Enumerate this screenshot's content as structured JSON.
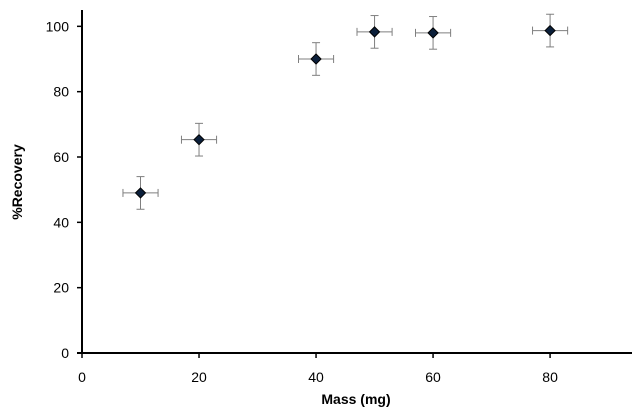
{
  "chart_data": {
    "type": "scatter",
    "title": "",
    "xlabel": "Mass (mg)",
    "ylabel": "%Recovery",
    "xlim": [
      0,
      94
    ],
    "ylim": [
      0,
      105
    ],
    "x_ticks": [
      "0",
      "20",
      "40",
      "60",
      "80"
    ],
    "y_ticks": [
      "0",
      "20",
      "40",
      "60",
      "80",
      "100"
    ],
    "grid": false,
    "legend": "none",
    "marker": {
      "shape": "diamond",
      "fill": "#0b1f3a",
      "stroke": "#000000"
    },
    "error_bar_color": "#7f7f7f",
    "series": [
      {
        "points": [
          {
            "x": 10,
            "y": 49,
            "x_err": 3,
            "y_err": 5
          },
          {
            "x": 20,
            "y": 65.3,
            "x_err": 3,
            "y_err": 5
          },
          {
            "x": 40,
            "y": 90,
            "x_err": 3,
            "y_err": 5
          },
          {
            "x": 50,
            "y": 98.3,
            "x_err": 3,
            "y_err": 5
          },
          {
            "x": 60,
            "y": 98,
            "x_err": 3,
            "y_err": 5
          },
          {
            "x": 80,
            "y": 98.7,
            "x_err": 3,
            "y_err": 5
          }
        ]
      }
    ]
  }
}
